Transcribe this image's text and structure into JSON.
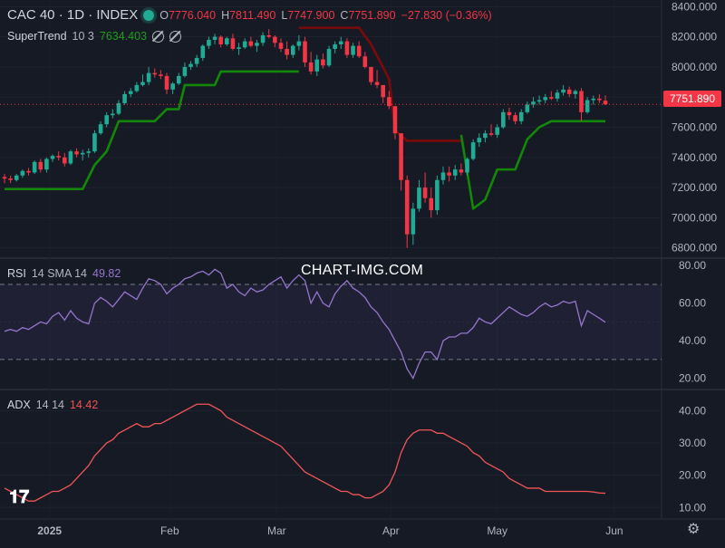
{
  "header": {
    "symbol": "CAC 40 · 1D · INDEX",
    "o_label": "O",
    "o_value": "7776.040",
    "h_label": "H",
    "h_value": "7811.490",
    "l_label": "L",
    "l_value": "7747.900",
    "c_label": "C",
    "c_value": "7751.890",
    "change": "−27.830 (−0.36%)"
  },
  "supertrend_legend": {
    "name": "SuperTrend",
    "params": "10 3",
    "value": "7634.403"
  },
  "rsi_legend": {
    "name": "RSI",
    "params": "14 SMA 14",
    "value": "49.82"
  },
  "adx_legend": {
    "name": "ADX",
    "params": "14 14",
    "value": "14.42"
  },
  "watermark": "CHART-IMG.COM",
  "last_price_tag": "7751.890",
  "colors": {
    "up": "#22ab94",
    "down": "#f23645",
    "st_up": "#138808",
    "st_down": "#7b0a0a",
    "rsi": "#9575cd",
    "adx": "#f05656",
    "bg": "#161a25"
  },
  "chart_data": [
    {
      "type": "candlestick",
      "title": "CAC 40 · 1D · INDEX",
      "y_ticks": [
        "8400.000",
        "8200.000",
        "8000.000",
        "7800.000",
        "7600.000",
        "7400.000",
        "7200.000",
        "7000.000",
        "6800.000"
      ],
      "ylim": [
        6750,
        8420
      ],
      "x_ticks": [
        "2025",
        "Feb",
        "Mar",
        "Apr",
        "May",
        "Jun"
      ],
      "ohlc": [
        [
          7270,
          7290,
          7230,
          7260
        ],
        [
          7260,
          7280,
          7230,
          7250
        ],
        [
          7250,
          7290,
          7240,
          7280
        ],
        [
          7280,
          7320,
          7265,
          7310
        ],
        [
          7310,
          7330,
          7280,
          7300
        ],
        [
          7300,
          7380,
          7290,
          7370
        ],
        [
          7370,
          7390,
          7300,
          7320
        ],
        [
          7320,
          7400,
          7300,
          7390
        ],
        [
          7390,
          7420,
          7370,
          7410
        ],
        [
          7410,
          7440,
          7380,
          7400
        ],
        [
          7400,
          7430,
          7340,
          7360
        ],
        [
          7360,
          7450,
          7350,
          7440
        ],
        [
          7440,
          7460,
          7400,
          7420
        ],
        [
          7420,
          7450,
          7380,
          7430
        ],
        [
          7430,
          7460,
          7400,
          7440
        ],
        [
          7440,
          7580,
          7430,
          7560
        ],
        [
          7560,
          7640,
          7550,
          7620
        ],
        [
          7620,
          7700,
          7600,
          7680
        ],
        [
          7680,
          7720,
          7660,
          7690
        ],
        [
          7690,
          7780,
          7680,
          7760
        ],
        [
          7760,
          7840,
          7750,
          7820
        ],
        [
          7820,
          7860,
          7800,
          7840
        ],
        [
          7840,
          7900,
          7830,
          7880
        ],
        [
          7880,
          7950,
          7870,
          7900
        ],
        [
          7900,
          8000,
          7880,
          7960
        ],
        [
          7960,
          7990,
          7930,
          7950
        ],
        [
          7950,
          7980,
          7920,
          7940
        ],
        [
          7940,
          7960,
          7820,
          7850
        ],
        [
          7850,
          7900,
          7820,
          7890
        ],
        [
          7890,
          7960,
          7880,
          7940
        ],
        [
          7940,
          8030,
          7930,
          8000
        ],
        [
          8000,
          8040,
          7980,
          8020
        ],
        [
          8020,
          8080,
          8000,
          8060
        ],
        [
          8060,
          8150,
          8040,
          8140
        ],
        [
          8140,
          8200,
          8120,
          8180
        ],
        [
          8180,
          8220,
          8150,
          8200
        ],
        [
          8200,
          8210,
          8130,
          8150
        ],
        [
          8150,
          8200,
          8140,
          8190
        ],
        [
          8190,
          8220,
          8110,
          8120
        ],
        [
          8120,
          8160,
          8080,
          8130
        ],
        [
          8130,
          8190,
          8120,
          8170
        ],
        [
          8170,
          8200,
          8130,
          8140
        ],
        [
          8140,
          8180,
          8100,
          8160
        ],
        [
          8160,
          8230,
          8140,
          8210
        ],
        [
          8210,
          8250,
          8190,
          8200
        ],
        [
          8200,
          8210,
          8130,
          8160
        ],
        [
          8160,
          8190,
          8100,
          8120
        ],
        [
          8120,
          8170,
          8050,
          8080
        ],
        [
          8080,
          8150,
          8060,
          8140
        ],
        [
          8140,
          8210,
          8110,
          8170
        ],
        [
          8170,
          8200,
          8000,
          8030
        ],
        [
          8030,
          8100,
          7950,
          7970
        ],
        [
          7970,
          8080,
          7940,
          8050
        ],
        [
          8050,
          8090,
          7990,
          8010
        ],
        [
          8010,
          8140,
          8000,
          8120
        ],
        [
          8120,
          8170,
          8090,
          8150
        ],
        [
          8150,
          8200,
          8120,
          8170
        ],
        [
          8170,
          8190,
          8060,
          8080
        ],
        [
          8080,
          8160,
          8060,
          8140
        ],
        [
          8140,
          8170,
          8060,
          8070
        ],
        [
          8070,
          8100,
          7990,
          8000
        ],
        [
          8000,
          8000,
          7880,
          7900
        ],
        [
          7900,
          7980,
          7860,
          7880
        ],
        [
          7880,
          7880,
          7760,
          7800
        ],
        [
          7800,
          7840,
          7720,
          7740
        ],
        [
          7740,
          7740,
          7520,
          7560
        ],
        [
          7560,
          7560,
          7180,
          7250
        ],
        [
          7250,
          7280,
          6800,
          6890
        ],
        [
          6890,
          7100,
          6820,
          7060
        ],
        [
          7060,
          7250,
          7040,
          7200
        ],
        [
          7200,
          7300,
          7100,
          7130
        ],
        [
          7130,
          7200,
          7000,
          7050
        ],
        [
          7050,
          7280,
          7020,
          7250
        ],
        [
          7250,
          7340,
          7220,
          7300
        ],
        [
          7300,
          7340,
          7240,
          7280
        ],
        [
          7280,
          7350,
          7250,
          7320
        ],
        [
          7320,
          7360,
          7280,
          7300
        ],
        [
          7300,
          7400,
          7280,
          7390
        ],
        [
          7390,
          7520,
          7380,
          7500
        ],
        [
          7500,
          7560,
          7470,
          7530
        ],
        [
          7530,
          7580,
          7500,
          7560
        ],
        [
          7560,
          7620,
          7540,
          7550
        ],
        [
          7550,
          7620,
          7530,
          7600
        ],
        [
          7600,
          7720,
          7590,
          7700
        ],
        [
          7700,
          7730,
          7650,
          7680
        ],
        [
          7680,
          7700,
          7620,
          7640
        ],
        [
          7640,
          7720,
          7620,
          7700
        ],
        [
          7700,
          7770,
          7690,
          7750
        ],
        [
          7750,
          7800,
          7730,
          7770
        ],
        [
          7770,
          7810,
          7750,
          7780
        ],
        [
          7780,
          7820,
          7760,
          7800
        ],
        [
          7800,
          7840,
          7780,
          7790
        ],
        [
          7790,
          7850,
          7770,
          7830
        ],
        [
          7830,
          7880,
          7810,
          7850
        ],
        [
          7850,
          7870,
          7800,
          7820
        ],
        [
          7820,
          7850,
          7790,
          7840
        ],
        [
          7840,
          7860,
          7640,
          7700
        ],
        [
          7700,
          7800,
          7690,
          7780
        ],
        [
          7780,
          7810,
          7750,
          7790
        ],
        [
          7790,
          7820,
          7760,
          7780
        ],
        [
          7776.04,
          7811.49,
          7747.9,
          7751.89
        ]
      ],
      "supertrend": [
        [
          0,
          7190,
          "up"
        ],
        [
          13,
          7190,
          "up"
        ],
        [
          15,
          7350,
          "up"
        ],
        [
          17,
          7440,
          "up"
        ],
        [
          19,
          7640,
          "up"
        ],
        [
          25,
          7640,
          "up"
        ],
        [
          27,
          7720,
          "up"
        ],
        [
          29,
          7720,
          "up"
        ],
        [
          30,
          7880,
          "up"
        ],
        [
          35,
          7880,
          "up"
        ],
        [
          36,
          7970,
          "up"
        ],
        [
          49,
          7970,
          "up"
        ],
        [
          49,
          8260,
          "down"
        ],
        [
          59,
          8260,
          "down"
        ],
        [
          61,
          8150,
          "down"
        ],
        [
          64,
          7920,
          "down"
        ],
        [
          65,
          7580,
          "down"
        ],
        [
          67,
          7510,
          "down"
        ],
        [
          76,
          7510,
          "down"
        ],
        [
          76,
          7550,
          "up"
        ],
        [
          78,
          7060,
          "up"
        ],
        [
          80,
          7120,
          "up"
        ],
        [
          82,
          7320,
          "up"
        ],
        [
          85,
          7320,
          "up"
        ],
        [
          87,
          7520,
          "up"
        ],
        [
          89,
          7600,
          "up"
        ],
        [
          91,
          7640,
          "up"
        ],
        [
          100,
          7640,
          "up"
        ]
      ]
    },
    {
      "type": "line",
      "title": "RSI 14 SMA 14",
      "y_ticks": [
        "80.00",
        "60.00",
        "40.00",
        "20.00"
      ],
      "ylim": [
        15,
        83
      ],
      "bands": [
        30,
        70
      ],
      "values": [
        45,
        46,
        45,
        47,
        46,
        48,
        50,
        49,
        53,
        55,
        51,
        56,
        52,
        50,
        49,
        60,
        63,
        61,
        58,
        62,
        66,
        64,
        62,
        68,
        73,
        72,
        70,
        65,
        68,
        70,
        73,
        74,
        76,
        77,
        75,
        78,
        76,
        68,
        70,
        66,
        64,
        68,
        66,
        67,
        70,
        72,
        74,
        68,
        72,
        75,
        72,
        60,
        66,
        60,
        58,
        65,
        69,
        72,
        68,
        66,
        63,
        58,
        55,
        50,
        46,
        40,
        34,
        25,
        20,
        28,
        34,
        34,
        30,
        40,
        42,
        42,
        44,
        44,
        47,
        52,
        50,
        49,
        52,
        55,
        58,
        56,
        54,
        53,
        55,
        58,
        60,
        58,
        59,
        61,
        60,
        61,
        48,
        56,
        54,
        52,
        49.82
      ]
    },
    {
      "type": "line",
      "title": "ADX 14 14",
      "y_ticks": [
        "40.00",
        "30.00",
        "20.00",
        "10.00"
      ],
      "ylim": [
        7,
        46
      ],
      "values": [
        16,
        15,
        14,
        13,
        12,
        12,
        13,
        14,
        15,
        15,
        16,
        17,
        19,
        21,
        23,
        26,
        28,
        30,
        31,
        33,
        34,
        35,
        36,
        35,
        35,
        36,
        36,
        37,
        38,
        39,
        40,
        41,
        42,
        42,
        42,
        41,
        40,
        38,
        37,
        36,
        35,
        34,
        33,
        32,
        31,
        30,
        29,
        27,
        25,
        23,
        21,
        20,
        19,
        18,
        17,
        16,
        15,
        15,
        14,
        14,
        13,
        13,
        14,
        15,
        17,
        21,
        27,
        31,
        33,
        34,
        34,
        34,
        33,
        33,
        32,
        31,
        30,
        29,
        27,
        26,
        24,
        23,
        22,
        21,
        19,
        18,
        17,
        16,
        16,
        16,
        15,
        15,
        15,
        15,
        15,
        15,
        15,
        15,
        14.8,
        14.5,
        14.42
      ]
    }
  ]
}
